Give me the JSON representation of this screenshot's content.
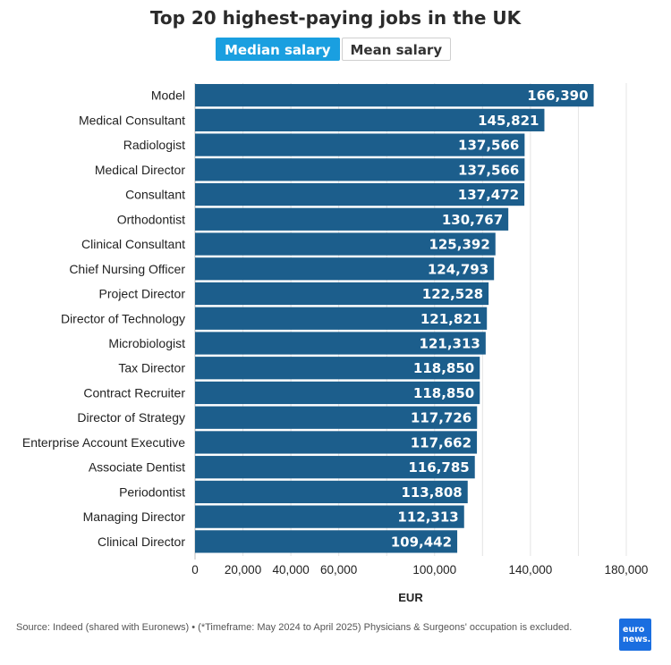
{
  "header": {
    "title": "Top 20 highest-paying jobs in the UK",
    "toggle_active": "Median salary",
    "toggle_inactive": "Mean salary"
  },
  "colors": {
    "bar": "#1c5e8c",
    "toggle_active": "#1a9fe0",
    "grid": "#e4e4e4"
  },
  "chart_data": {
    "type": "bar",
    "orientation": "horizontal",
    "categories": [
      "Model",
      "Medical Consultant",
      "Radiologist",
      "Medical Director",
      "Consultant",
      "Orthodontist",
      "Clinical Consultant",
      "Chief Nursing Officer",
      "Project Director",
      "Director of Technology",
      "Microbiologist",
      "Tax Director",
      "Contract Recruiter",
      "Director of Strategy",
      "Enterprise Account Executive",
      "Associate Dentist",
      "Periodontist",
      "Managing Director",
      "Clinical Director"
    ],
    "values": [
      166390,
      145821,
      137566,
      137566,
      137472,
      130767,
      125392,
      124793,
      122528,
      121821,
      121313,
      118850,
      118850,
      117726,
      117662,
      116785,
      113808,
      112313,
      109442
    ],
    "value_labels": [
      "166,390",
      "145,821",
      "137,566",
      "137,566",
      "137,472",
      "130,767",
      "125,392",
      "124,793",
      "122,528",
      "121,821",
      "121,313",
      "118,850",
      "118,850",
      "117,726",
      "117,662",
      "116,785",
      "113,808",
      "112,313",
      "109,442"
    ],
    "x_ticks": [
      0,
      20000,
      40000,
      60000,
      100000,
      140000,
      180000
    ],
    "x_tick_labels": [
      "0",
      "20,000",
      "40,000",
      "60,000",
      "100,000",
      "140,000",
      "180,000"
    ],
    "xlabel": "EUR",
    "xlim": [
      0,
      180000
    ],
    "grid": true
  },
  "footer": {
    "source": "Source: Indeed (shared with Euronews) • (*Timeframe: May 2024 to April 2025) Physicians & Surgeons' occupation is excluded.",
    "logo_line1": "euro",
    "logo_line2": "news."
  }
}
